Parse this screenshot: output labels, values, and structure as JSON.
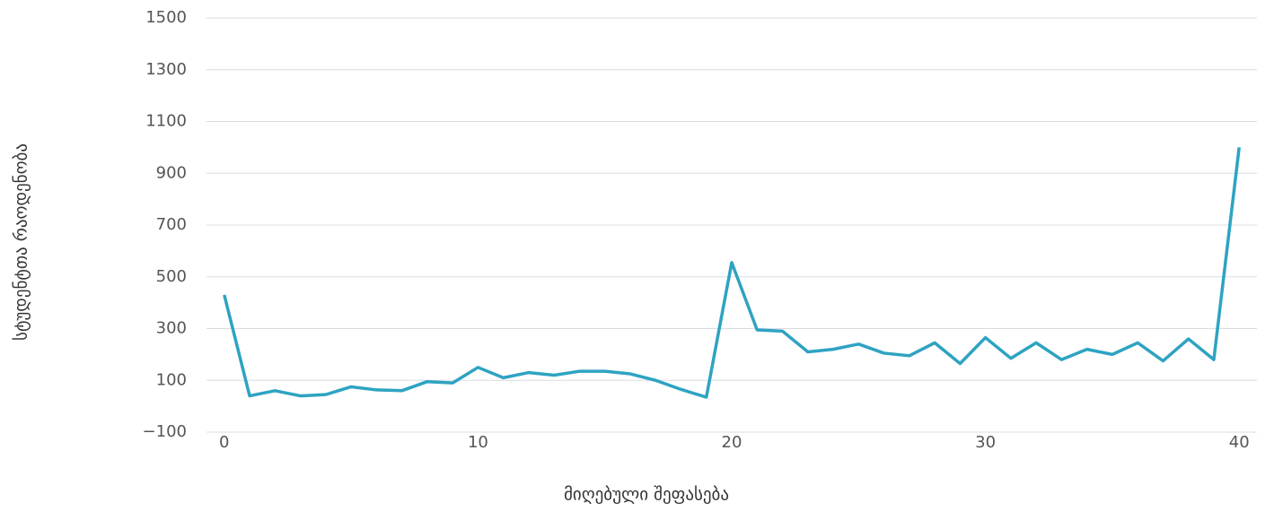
{
  "chart_data": {
    "type": "line",
    "x_label": "მიღებული შეფასება",
    "y_label": "სტუდენტთა რაოდენობა",
    "x": [
      0,
      1,
      2,
      3,
      4,
      5,
      6,
      7,
      8,
      9,
      10,
      11,
      12,
      13,
      14,
      15,
      16,
      17,
      18,
      19,
      20,
      21,
      22,
      23,
      24,
      25,
      26,
      27,
      28,
      29,
      30,
      31,
      32,
      33,
      34,
      35,
      36,
      37,
      38,
      39,
      40
    ],
    "series": [
      {
        "color": "#2ea3c2",
        "values": [
          430,
          40,
          60,
          40,
          45,
          75,
          63,
          60,
          95,
          90,
          150,
          110,
          130,
          120,
          135,
          135,
          125,
          100,
          65,
          35,
          555,
          295,
          290,
          210,
          220,
          240,
          205,
          195,
          245,
          165,
          265,
          185,
          245,
          180,
          220,
          200,
          245,
          175,
          260,
          180,
          1000
        ]
      }
    ],
    "xlim": [
      -0.7,
      40.7
    ],
    "xticks": [
      0,
      10,
      20,
      30,
      40
    ],
    "ylim": [
      -100,
      1500
    ],
    "yticks": [
      {
        "value": -100,
        "label": "−100"
      },
      100,
      300,
      500,
      700,
      900,
      1100,
      1300,
      1500
    ],
    "grid": true
  }
}
